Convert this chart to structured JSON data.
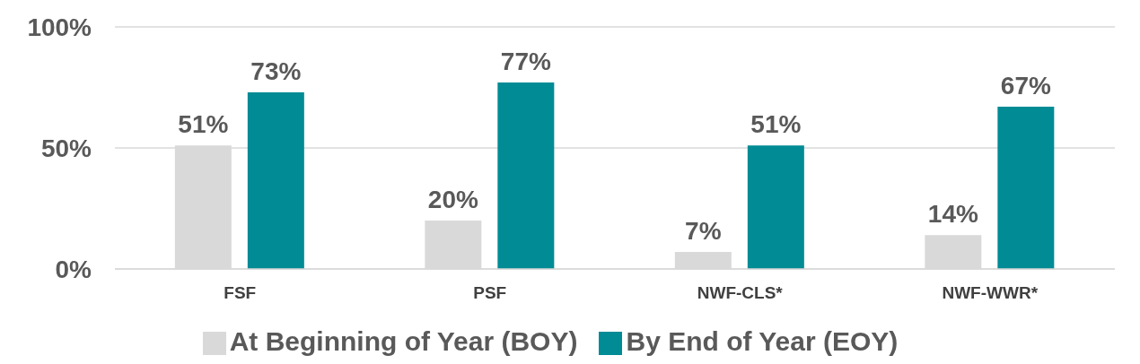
{
  "chart_data": {
    "type": "bar",
    "categories": [
      "FSF",
      "PSF",
      "NWF-CLS*",
      "NWF-WWR*"
    ],
    "series": [
      {
        "name": "At Beginning of Year (BOY)",
        "color": "#d9d9d9",
        "values": [
          51,
          20,
          7,
          14
        ],
        "value_labels": [
          "51%",
          "20%",
          "7%",
          "14%"
        ]
      },
      {
        "name": "By End of Year (EOY)",
        "color": "#008b95",
        "values": [
          73,
          77,
          51,
          67
        ],
        "value_labels": [
          "73%",
          "77%",
          "51%",
          "67%"
        ]
      }
    ],
    "ylim": [
      0,
      100
    ],
    "yticks": [
      {
        "value": 0,
        "label": "0%"
      },
      {
        "value": 50,
        "label": "50%"
      },
      {
        "value": 100,
        "label": "100%"
      }
    ],
    "grid": "y",
    "legend": "bottom"
  }
}
